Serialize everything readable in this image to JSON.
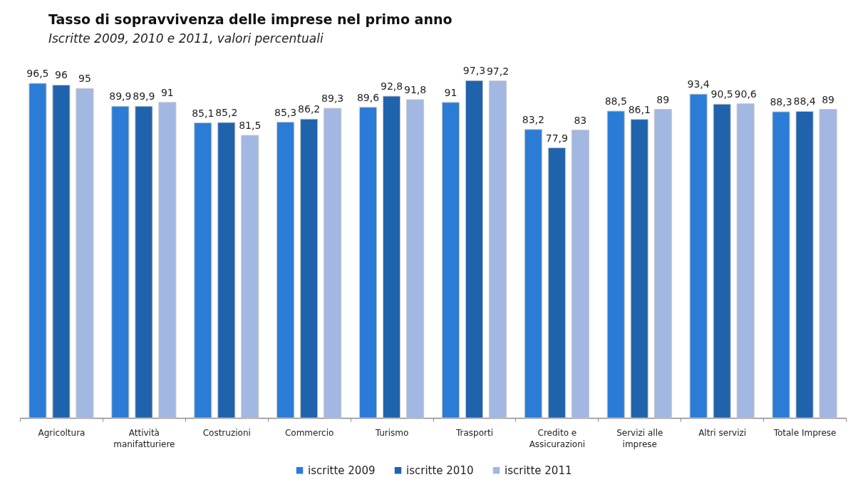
{
  "chart_data": {
    "type": "bar",
    "title": "Tasso di sopravvivenza delle imprese nel primo anno",
    "subtitle": "Iscritte 2009, 2010 e 2011, valori percentuali",
    "categories": [
      "Agricoltura",
      "Attività manifatturiere",
      "Costruzioni",
      "Commercio",
      "Turismo",
      "Trasporti",
      "Credito e Assicurazioni",
      "Servizi alle imprese",
      "Altri servizi",
      "Totale Imprese"
    ],
    "series": [
      {
        "name": "iscritte 2009",
        "color": "#2b7cd6",
        "values": [
          96.5,
          89.9,
          85.1,
          85.3,
          89.6,
          91,
          83.2,
          88.5,
          93.4,
          88.3
        ],
        "value_labels": [
          "96,5",
          "89,9",
          "85,1",
          "85,3",
          "89,6",
          "91",
          "83,2",
          "88,5",
          "93,4",
          "88,3"
        ]
      },
      {
        "name": "iscritte 2010",
        "color": "#1f63ad",
        "values": [
          96,
          89.9,
          85.2,
          86.2,
          92.8,
          97.3,
          77.9,
          86.1,
          90.5,
          88.4
        ],
        "value_labels": [
          "96",
          "89,9",
          "85,2",
          "86,2",
          "92,8",
          "97,3",
          "77,9",
          "86,1",
          "90,5",
          "88,4"
        ]
      },
      {
        "name": "iscritte 2011",
        "color": "#a2b7e2",
        "values": [
          95,
          91,
          81.5,
          89.3,
          91.8,
          97.2,
          83,
          89,
          90.6,
          89
        ],
        "value_labels": [
          "95",
          "91",
          "81,5",
          "89,3",
          "91,8",
          "97,2",
          "83",
          "89",
          "90,6",
          "89"
        ]
      }
    ],
    "tick_labels": "x",
    "legend": "bottom"
  }
}
